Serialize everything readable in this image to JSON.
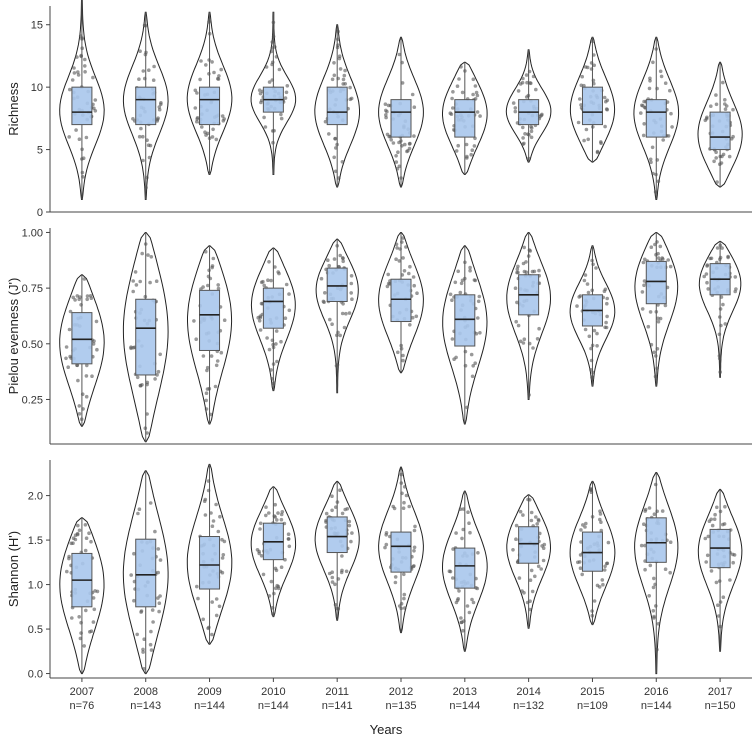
{
  "chart_data": {
    "type": "violin-box",
    "xlabel": "Years",
    "categories": [
      "2007",
      "2008",
      "2009",
      "2010",
      "2011",
      "2012",
      "2013",
      "2014",
      "2015",
      "2016",
      "2017"
    ],
    "sample_sizes": [
      "n=76",
      "n=143",
      "n=144",
      "n=144",
      "n=141",
      "n=135",
      "n=144",
      "n=132",
      "n=109",
      "n=144",
      "n=150"
    ],
    "colors": {
      "box_fill": "#a9c6ec",
      "box_stroke": "#555555",
      "violin_stroke": "#222222",
      "point": "#555555",
      "axis": "#444444"
    },
    "panels": [
      {
        "ylabel": "Richness",
        "ylim": [
          0,
          16.5
        ],
        "yticks": [
          0,
          5,
          10,
          15
        ],
        "yticklabels": [
          "0",
          "5",
          "10",
          "15"
        ],
        "stats": [
          {
            "min": 1,
            "q1": 7,
            "median": 8,
            "q3": 10,
            "max": 17
          },
          {
            "min": 1,
            "q1": 7,
            "median": 9,
            "q3": 10,
            "max": 16
          },
          {
            "min": 3,
            "q1": 7,
            "median": 9,
            "q3": 10,
            "max": 16
          },
          {
            "min": 3,
            "q1": 8,
            "median": 9,
            "q3": 10,
            "max": 16
          },
          {
            "min": 2,
            "q1": 7,
            "median": 8,
            "q3": 10,
            "max": 15
          },
          {
            "min": 2,
            "q1": 6,
            "median": 8,
            "q3": 9,
            "max": 14
          },
          {
            "min": 3,
            "q1": 6,
            "median": 8,
            "q3": 9,
            "max": 12
          },
          {
            "min": 4,
            "q1": 7,
            "median": 8,
            "q3": 9,
            "max": 13
          },
          {
            "min": 4,
            "q1": 7,
            "median": 8,
            "q3": 10,
            "max": 14
          },
          {
            "min": 1,
            "q1": 6,
            "median": 8,
            "q3": 9,
            "max": 14
          },
          {
            "min": 2,
            "q1": 5,
            "median": 6,
            "q3": 8,
            "max": 12
          }
        ]
      },
      {
        "ylabel": "Pielou evenness (J')",
        "ylim": [
          0.05,
          1.02
        ],
        "yticks": [
          0.25,
          0.5,
          0.75,
          1.0
        ],
        "yticklabels": [
          "0.25",
          "0.50",
          "0.75",
          "1.00"
        ],
        "stats": [
          {
            "min": 0.13,
            "q1": 0.41,
            "median": 0.52,
            "q3": 0.64,
            "max": 0.81
          },
          {
            "min": 0.06,
            "q1": 0.36,
            "median": 0.57,
            "q3": 0.7,
            "max": 1.0
          },
          {
            "min": 0.14,
            "q1": 0.47,
            "median": 0.63,
            "q3": 0.74,
            "max": 0.94
          },
          {
            "min": 0.29,
            "q1": 0.57,
            "median": 0.69,
            "q3": 0.75,
            "max": 0.93
          },
          {
            "min": 0.28,
            "q1": 0.69,
            "median": 0.76,
            "q3": 0.84,
            "max": 0.97
          },
          {
            "min": 0.37,
            "q1": 0.6,
            "median": 0.7,
            "q3": 0.79,
            "max": 1.0
          },
          {
            "min": 0.14,
            "q1": 0.49,
            "median": 0.61,
            "q3": 0.72,
            "max": 0.94
          },
          {
            "min": 0.25,
            "q1": 0.63,
            "median": 0.72,
            "q3": 0.81,
            "max": 1.0
          },
          {
            "min": 0.31,
            "q1": 0.58,
            "median": 0.65,
            "q3": 0.72,
            "max": 0.94
          },
          {
            "min": 0.31,
            "q1": 0.68,
            "median": 0.78,
            "q3": 0.87,
            "max": 1.0
          },
          {
            "min": 0.35,
            "q1": 0.72,
            "median": 0.79,
            "q3": 0.86,
            "max": 0.96
          }
        ]
      },
      {
        "ylabel": "Shannon (H')",
        "ylim": [
          -0.05,
          2.4
        ],
        "yticks": [
          0,
          0.5,
          1.0,
          1.5,
          2.0
        ],
        "yticklabels": [
          "0.0",
          "0.5",
          "1.0",
          "1.5",
          "2.0"
        ],
        "stats": [
          {
            "min": 0.0,
            "q1": 0.75,
            "median": 1.05,
            "q3": 1.35,
            "max": 1.75
          },
          {
            "min": 0.0,
            "q1": 0.75,
            "median": 1.11,
            "q3": 1.51,
            "max": 2.28
          },
          {
            "min": 0.33,
            "q1": 0.95,
            "median": 1.22,
            "q3": 1.54,
            "max": 2.35
          },
          {
            "min": 0.64,
            "q1": 1.28,
            "median": 1.48,
            "q3": 1.69,
            "max": 2.1
          },
          {
            "min": 0.6,
            "q1": 1.36,
            "median": 1.54,
            "q3": 1.76,
            "max": 2.16
          },
          {
            "min": 0.46,
            "q1": 1.14,
            "median": 1.43,
            "q3": 1.59,
            "max": 2.32
          },
          {
            "min": 0.25,
            "q1": 0.96,
            "median": 1.21,
            "q3": 1.41,
            "max": 2.05
          },
          {
            "min": 0.51,
            "q1": 1.24,
            "median": 1.46,
            "q3": 1.65,
            "max": 2.01
          },
          {
            "min": 0.55,
            "q1": 1.15,
            "median": 1.36,
            "q3": 1.59,
            "max": 2.16
          },
          {
            "min": 0.0,
            "q1": 1.25,
            "median": 1.47,
            "q3": 1.75,
            "max": 2.26
          },
          {
            "min": 0.25,
            "q1": 1.19,
            "median": 1.41,
            "q3": 1.62,
            "max": 2.07
          }
        ]
      }
    ]
  }
}
